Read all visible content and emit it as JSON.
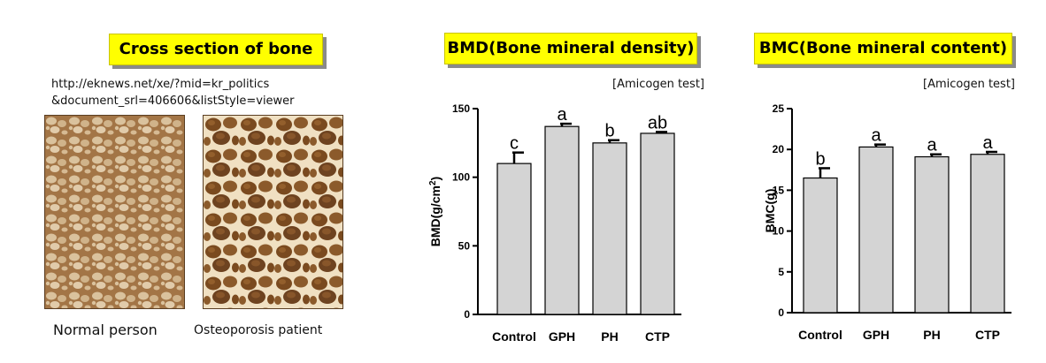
{
  "left_panel": {
    "title": "Cross section of bone",
    "source_line1": "http://eknews.net/xe/?mid=kr_politics",
    "source_line2": "&document_srl=406606&listStyle=viewer",
    "caption_normal": "Normal person",
    "caption_osteo": "Osteoporosis patient",
    "colors": {
      "title_bg": "#ffff00",
      "bone_light": "#e6cfa8",
      "bone_dark": "#6e4320"
    }
  },
  "chart_data": [
    {
      "type": "bar",
      "title": "BMD(Bone mineral density)",
      "note": "[Amicogen test]",
      "ylabel": "BMD(g/cm",
      "ylabel_sup": "2",
      "ylabel_close": ")",
      "ylim": [
        0,
        150
      ],
      "yticks": [
        0,
        50,
        100,
        150
      ],
      "categories": [
        "Control",
        "GPH",
        "PH",
        "CTP"
      ],
      "values": [
        110,
        137,
        125,
        132
      ],
      "errors": [
        8,
        2,
        2,
        1
      ],
      "significance": [
        "c",
        "a",
        "b",
        "ab"
      ],
      "bar_color": "#d4d4d4",
      "grid": false
    },
    {
      "type": "bar",
      "title": "BMC(Bone mineral content)",
      "note": "[Amicogen test]",
      "ylabel": "BMC(g)",
      "ylabel_sup": "",
      "ylabel_close": "",
      "ylim": [
        0,
        25
      ],
      "yticks": [
        0,
        5,
        10,
        15,
        20,
        25
      ],
      "categories": [
        "Control",
        "GPH",
        "PH",
        "CTP"
      ],
      "values": [
        16.5,
        20.3,
        19.1,
        19.4
      ],
      "errors": [
        1.2,
        0.3,
        0.3,
        0.3
      ],
      "significance": [
        "b",
        "a",
        "a",
        "a"
      ],
      "bar_color": "#d4d4d4",
      "grid": false
    }
  ]
}
